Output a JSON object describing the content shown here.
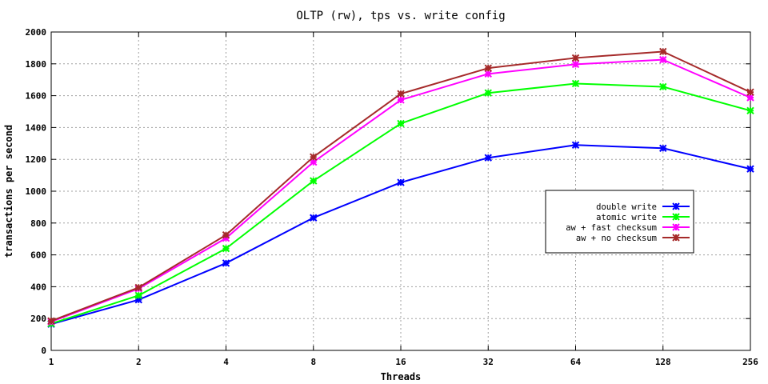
{
  "chart_data": {
    "type": "line",
    "title": "OLTP (rw), tps vs. write config",
    "xlabel": "Threads",
    "ylabel": "transactions per second",
    "x_scale": "log2",
    "categories": [
      "1",
      "2",
      "4",
      "8",
      "16",
      "32",
      "64",
      "128",
      "256"
    ],
    "ylim": [
      0,
      2000
    ],
    "yticks": [
      0,
      200,
      400,
      600,
      800,
      1000,
      1200,
      1400,
      1600,
      1800,
      2000
    ],
    "grid": true,
    "legend_position": "right-center",
    "series": [
      {
        "name": "double write",
        "color": "#0000ff",
        "values": [
          165,
          318,
          548,
          833,
          1055,
          1210,
          1290,
          1270,
          1140
        ]
      },
      {
        "name": "atomic write",
        "color": "#00ff00",
        "values": [
          168,
          345,
          640,
          1065,
          1425,
          1617,
          1676,
          1656,
          1506
        ]
      },
      {
        "name": "aw + fast checksum",
        "color": "#ff00ff",
        "values": [
          180,
          388,
          705,
          1183,
          1573,
          1737,
          1797,
          1826,
          1588
        ]
      },
      {
        "name": "aw + no checksum",
        "color": "#a52a2a",
        "values": [
          185,
          395,
          725,
          1215,
          1612,
          1773,
          1837,
          1877,
          1622
        ]
      }
    ]
  }
}
